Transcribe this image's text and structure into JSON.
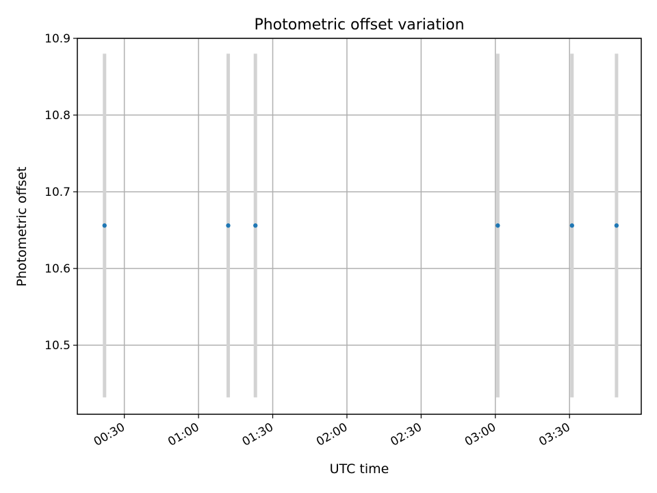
{
  "chart_data": {
    "type": "scatter",
    "title": "Photometric offset variation",
    "xlabel": "UTC time",
    "ylabel": "Photometric offset",
    "grid": true,
    "x_ticks": [
      "00:30",
      "01:00",
      "01:30",
      "02:00",
      "02:30",
      "03:00",
      "03:30"
    ],
    "y_ticks": [
      "10.5",
      "10.6",
      "10.7",
      "10.8",
      "10.9"
    ],
    "xlim": [
      "00:11",
      "03:59"
    ],
    "ylim": [
      10.41,
      10.9
    ],
    "series": [
      {
        "x": [
          "00:22",
          "01:12",
          "01:23",
          "03:01",
          "03:31",
          "03:49"
        ],
        "y": [
          10.656,
          10.656,
          10.656,
          10.656,
          10.656,
          10.656
        ],
        "yerr_low": [
          10.432,
          10.432,
          10.432,
          10.432,
          10.432,
          10.432
        ],
        "yerr_high": [
          10.88,
          10.88,
          10.88,
          10.88,
          10.88,
          10.88
        ]
      }
    ],
    "colors": {
      "point": "#1f77b4",
      "errorbar": "#d3d3d3",
      "grid": "#b0b0b0"
    }
  }
}
